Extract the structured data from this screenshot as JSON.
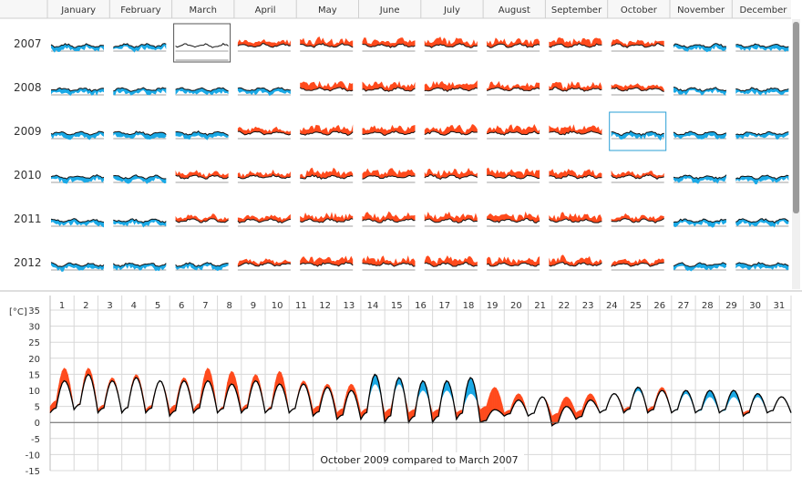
{
  "colors": {
    "warm": "#ff4a1c",
    "cold": "#1aa9e6",
    "line": "#000000",
    "grid": "#d8d8d8",
    "highlight_year": "#555555",
    "highlight_compare": "#2a9fd6"
  },
  "overview": {
    "months": [
      "January",
      "February",
      "March",
      "April",
      "May",
      "June",
      "July",
      "August",
      "September",
      "October",
      "November",
      "December"
    ],
    "years": [
      "2007",
      "2008",
      "2009",
      "2010",
      "2011",
      "2012"
    ],
    "reference": {
      "year": "2007",
      "month": "March"
    },
    "selected": {
      "year": "2009",
      "month": "October"
    },
    "anomaly_sign": [
      [
        -1,
        -1,
        0,
        1,
        1,
        1,
        1,
        1,
        1,
        1,
        -1,
        -1
      ],
      [
        -1,
        -1,
        -1,
        -1,
        1,
        1,
        1,
        1,
        1,
        1,
        -1,
        -1
      ],
      [
        -1,
        -1,
        -1,
        1,
        1,
        1,
        1,
        1,
        1,
        -1,
        -1,
        -1
      ],
      [
        -1,
        -1,
        1,
        1,
        1,
        1,
        1,
        1,
        1,
        1,
        -1,
        -1
      ],
      [
        -1,
        -1,
        1,
        1,
        1,
        1,
        1,
        1,
        1,
        1,
        -1,
        -1
      ],
      [
        -1,
        -1,
        -1,
        1,
        1,
        1,
        1,
        1,
        1,
        1,
        -1,
        -1
      ]
    ]
  },
  "chart_data": {
    "type": "area",
    "title": "October 2009 compared to March 2007",
    "unit": "[°C]",
    "x_labels": [
      "1",
      "2",
      "3",
      "4",
      "5",
      "6",
      "7",
      "8",
      "9",
      "10",
      "11",
      "12",
      "13",
      "14",
      "15",
      "16",
      "17",
      "18",
      "19",
      "20",
      "21",
      "22",
      "23",
      "24",
      "25",
      "26",
      "27",
      "28",
      "29",
      "30",
      "31"
    ],
    "ylim": [
      -15,
      35
    ],
    "yticks": [
      35,
      30,
      25,
      20,
      15,
      10,
      5,
      0,
      -5,
      -10,
      -15
    ],
    "grid": true,
    "series": [
      {
        "name": "October 2009",
        "daily_max": [
          13,
          15,
          13,
          14,
          13,
          13,
          13,
          12,
          13,
          12,
          12,
          11,
          10,
          15,
          14,
          13,
          13,
          14,
          4,
          7,
          8,
          5,
          7,
          9,
          11,
          10,
          10,
          10,
          10,
          9,
          8
        ],
        "daily_min": [
          3,
          4,
          3,
          3,
          3,
          2,
          3,
          3,
          3,
          3,
          3,
          2,
          1,
          1,
          0,
          0,
          0,
          1,
          0,
          2,
          2,
          -1,
          1,
          3,
          3,
          3,
          3,
          3,
          3,
          2,
          3
        ]
      },
      {
        "name": "March 2007",
        "daily_max": [
          17,
          17,
          14,
          15,
          13,
          14,
          17,
          16,
          15,
          16,
          13,
          12,
          12,
          12,
          12,
          10,
          10,
          9,
          11,
          9,
          8,
          8,
          9,
          9,
          10,
          11,
          9,
          8,
          8,
          8,
          8
        ],
        "daily_min": [
          5,
          4,
          4,
          3,
          4,
          4,
          4,
          3,
          4,
          3,
          3,
          4,
          3,
          3,
          3,
          3,
          3,
          3,
          4,
          3,
          2,
          2,
          3,
          3,
          4,
          4,
          3,
          3,
          3,
          3,
          3
        ]
      }
    ]
  }
}
